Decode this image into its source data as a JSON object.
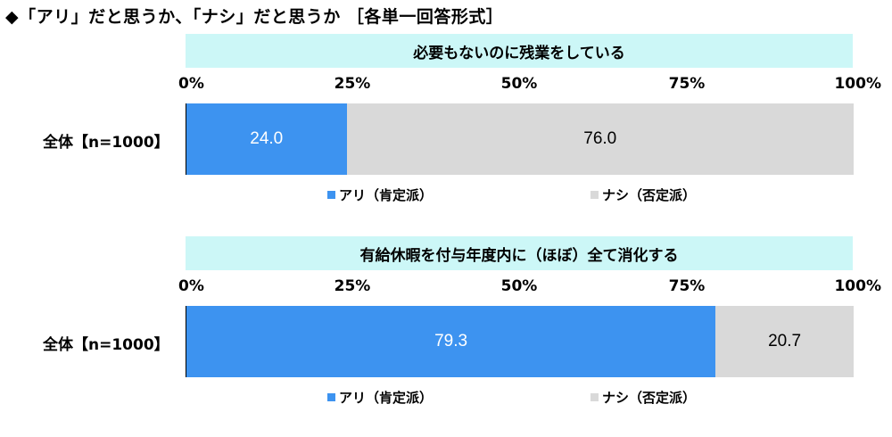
{
  "title": "◆「アリ」だと思うか、「ナシ」だと思うか ［各単一回答形式］",
  "colors": {
    "yes": "#3d93f0",
    "no": "#d9d9d9",
    "header_bg": "#ccf7f7"
  },
  "legend": {
    "yes": "アリ（肯定派）",
    "no": "ナシ（否定派）"
  },
  "ticks": [
    "0%",
    "25%",
    "50%",
    "75%",
    "100%"
  ],
  "chart_data": [
    {
      "type": "bar",
      "orientation": "horizontal",
      "stacked": true,
      "title": "必要もないのに残業をしている",
      "categories": [
        "全体【n=1000】"
      ],
      "series": [
        {
          "name": "アリ（肯定派）",
          "values": [
            24.0
          ],
          "label": "24.0"
        },
        {
          "name": "ナシ（否定派）",
          "values": [
            76.0
          ],
          "label": "76.0"
        }
      ],
      "xlim": [
        0,
        100
      ]
    },
    {
      "type": "bar",
      "orientation": "horizontal",
      "stacked": true,
      "title": "有給休暇を付与年度内に（ほぼ）全て消化する",
      "categories": [
        "全体【n=1000】"
      ],
      "series": [
        {
          "name": "アリ（肯定派）",
          "values": [
            79.3
          ],
          "label": "79.3"
        },
        {
          "name": "ナシ（否定派）",
          "values": [
            20.7
          ],
          "label": "20.7"
        }
      ],
      "xlim": [
        0,
        100
      ]
    }
  ]
}
